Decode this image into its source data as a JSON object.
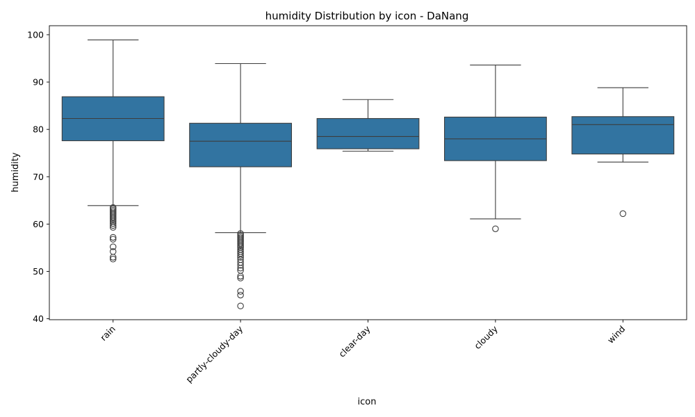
{
  "chart_data": {
    "type": "box",
    "title": "humidity Distribution by icon - DaNang",
    "xlabel": "icon",
    "ylabel": "humidity",
    "ylim": [
      39.8,
      101.9
    ],
    "yticks": [
      40,
      50,
      60,
      70,
      80,
      90,
      100
    ],
    "grid": false,
    "legend": "none",
    "box_color": "#3274a1",
    "line_color": "#3d3d3d",
    "categories": [
      "rain",
      "partly-cloudy-day",
      "clear-day",
      "cloudy",
      "wind"
    ],
    "boxes": [
      {
        "category": "rain",
        "whisker_low": 63.9,
        "q1": 77.6,
        "median": 82.3,
        "q3": 86.9,
        "whisker_high": 98.9,
        "outliers": [
          63.5,
          63.2,
          62.9,
          62.6,
          62.3,
          62.0,
          61.7,
          61.4,
          61.1,
          60.8,
          60.5,
          60.1,
          59.7,
          59.3,
          57.2,
          56.8,
          55.2,
          54.2,
          53.0,
          52.6
        ]
      },
      {
        "category": "partly-cloudy-day",
        "whisker_low": 58.2,
        "q1": 72.1,
        "median": 77.5,
        "q3": 81.3,
        "whisker_high": 93.9,
        "outliers": [
          58.0,
          57.7,
          57.4,
          57.1,
          56.8,
          56.5,
          56.2,
          55.9,
          55.6,
          55.3,
          55.0,
          54.6,
          54.2,
          53.8,
          53.4,
          53.0,
          52.5,
          51.9,
          51.3,
          50.7,
          50.2,
          49.0,
          48.6,
          45.8,
          45.0,
          42.7
        ]
      },
      {
        "category": "clear-day",
        "whisker_low": 75.4,
        "q1": 75.9,
        "median": 78.5,
        "q3": 82.3,
        "whisker_high": 86.3,
        "outliers": []
      },
      {
        "category": "cloudy",
        "whisker_low": 61.1,
        "q1": 73.4,
        "median": 78.0,
        "q3": 82.6,
        "whisker_high": 93.6,
        "outliers": [
          59.0
        ]
      },
      {
        "category": "wind",
        "whisker_low": 73.1,
        "q1": 74.8,
        "median": 81.0,
        "q3": 82.7,
        "whisker_high": 88.8,
        "outliers": [
          62.2
        ]
      }
    ]
  }
}
